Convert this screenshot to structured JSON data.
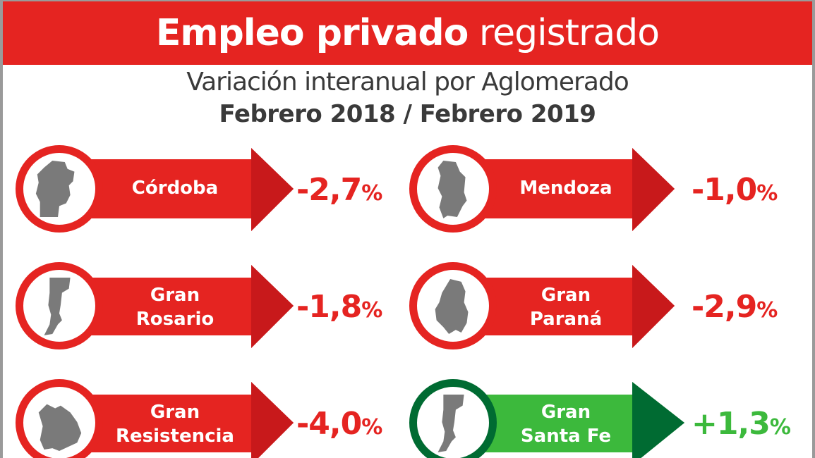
{
  "header": {
    "title_bold": "Empleo privado",
    "title_light": "registrado"
  },
  "subtitle": "Variación interanual por Aglomerado",
  "period": "Febrero 2018 / Febrero 2019",
  "colors": {
    "red": "#e52421",
    "dark_red": "#c8191b",
    "green_light": "#3cb93c",
    "green_dark": "#006b32",
    "map_gray": "#7a7a7a"
  },
  "items": [
    {
      "line1": "Córdoba",
      "line2": "",
      "value": "-2,7",
      "pct": "%",
      "trend": "negative",
      "icon": "cordoba-map-icon"
    },
    {
      "line1": "Mendoza",
      "line2": "",
      "value": "-1,0",
      "pct": "%",
      "trend": "negative",
      "icon": "mendoza-map-icon"
    },
    {
      "line1": "Gran",
      "line2": "Rosario",
      "value": "-1,8",
      "pct": "%",
      "trend": "negative",
      "icon": "santa-fe-map-icon"
    },
    {
      "line1": "Gran",
      "line2": "Paraná",
      "value": "-2,9",
      "pct": "%",
      "trend": "negative",
      "icon": "entre-rios-map-icon"
    },
    {
      "line1": "Gran",
      "line2": "Resistencia",
      "value": "-4,0",
      "pct": "%",
      "trend": "negative",
      "icon": "chaco-map-icon"
    },
    {
      "line1": "Gran",
      "line2": "Santa Fe",
      "value": "+1,3",
      "pct": "%",
      "trend": "positive",
      "icon": "santa-fe-map-icon"
    }
  ]
}
